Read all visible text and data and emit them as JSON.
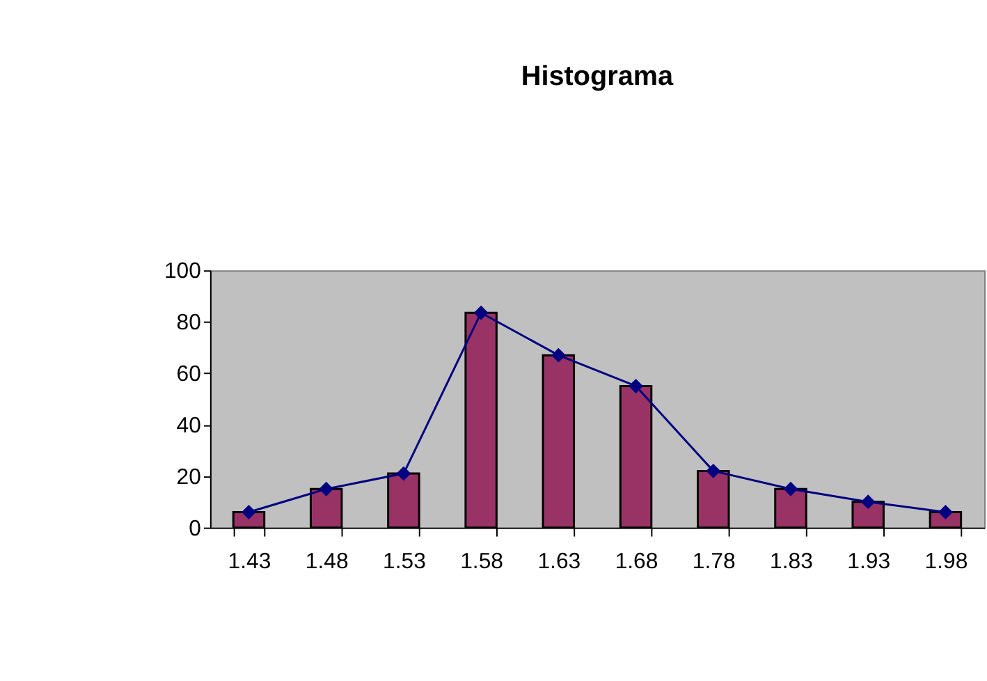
{
  "chart_data": {
    "type": "bar",
    "title": "Histograma",
    "categories": [
      "1.43",
      "1.48",
      "1.53",
      "1.58",
      "1.63",
      "1.68",
      "1.78",
      "1.83",
      "1.93",
      "1.98"
    ],
    "series": [
      {
        "color": "#993366",
        "values": [
          6,
          15,
          21,
          83.5,
          67,
          55,
          22,
          15,
          10,
          6
        ]
      },
      {
        "type": "line",
        "color": "#000080",
        "marker": "diamond",
        "values": [
          6,
          15,
          21,
          83.5,
          67,
          55,
          22,
          15,
          10,
          6
        ]
      }
    ],
    "ylim": [
      0,
      100
    ],
    "yticks": [
      0,
      20,
      40,
      60,
      80,
      100
    ],
    "grid": false
  }
}
